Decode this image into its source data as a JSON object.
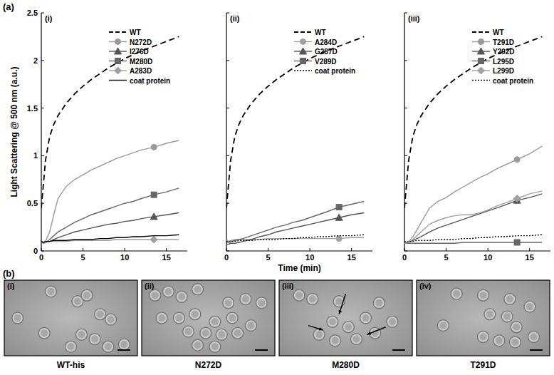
{
  "chart_data": [
    {
      "type": "line",
      "title": "(i)",
      "y_label": "Light Scattering @ 500 nm (a.u.)",
      "x": [
        0,
        0.25,
        0.5,
        1,
        1.5,
        2,
        3,
        4,
        5,
        6,
        7,
        8,
        9,
        10,
        11,
        12,
        13.5,
        15,
        16.5
      ],
      "xlim": [
        0,
        17.5
      ],
      "ylim": [
        0,
        2.5
      ],
      "xticks": [
        0,
        5,
        10,
        15
      ],
      "yticks": [
        0,
        0.5,
        1,
        1.5,
        2,
        2.5
      ],
      "legend": "right",
      "series": [
        {
          "name": "WT",
          "color": "#000000",
          "line_style": "dashed",
          "values": [
            0.45,
            0.7,
            0.95,
            1.2,
            1.33,
            1.42,
            1.55,
            1.65,
            1.73,
            1.8,
            1.86,
            1.92,
            1.97,
            2.02,
            2.06,
            2.1,
            2.15,
            2.2,
            2.25
          ]
        },
        {
          "name": "N272D",
          "color": "#9a9a9a",
          "marker": "circle",
          "line_style": "solid",
          "values": [
            0.1,
            0.08,
            0.1,
            0.2,
            0.38,
            0.55,
            0.68,
            0.75,
            0.8,
            0.85,
            0.89,
            0.93,
            0.97,
            1.0,
            1.03,
            1.06,
            1.09,
            1.13,
            1.16
          ]
        },
        {
          "name": "I276D",
          "color": "#555555",
          "marker": "triangle",
          "line_style": "solid",
          "values": [
            0.1,
            0.08,
            0.09,
            0.1,
            0.12,
            0.14,
            0.17,
            0.2,
            0.22,
            0.24,
            0.26,
            0.28,
            0.29,
            0.31,
            0.32,
            0.34,
            0.36,
            0.38,
            0.4
          ]
        },
        {
          "name": "M280D",
          "color": "#666666",
          "marker": "square",
          "line_style": "solid",
          "values": [
            0.1,
            0.08,
            0.09,
            0.12,
            0.16,
            0.2,
            0.25,
            0.3,
            0.34,
            0.38,
            0.41,
            0.44,
            0.47,
            0.5,
            0.52,
            0.55,
            0.59,
            0.62,
            0.66
          ]
        },
        {
          "name": "A283D",
          "color": "#a0a0a0",
          "marker": "diamond",
          "line_style": "solid",
          "values": [
            0.1,
            0.08,
            0.09,
            0.1,
            0.1,
            0.1,
            0.1,
            0.11,
            0.11,
            0.11,
            0.11,
            0.11,
            0.12,
            0.12,
            0.12,
            0.12,
            0.12,
            0.12,
            0.12
          ]
        },
        {
          "name": "coat protein",
          "color": "#000000",
          "line_style": "solid",
          "values": [
            0.1,
            0.09,
            0.1,
            0.1,
            0.11,
            0.11,
            0.11,
            0.12,
            0.12,
            0.12,
            0.13,
            0.13,
            0.14,
            0.14,
            0.15,
            0.15,
            0.16,
            0.16,
            0.17
          ]
        }
      ]
    },
    {
      "type": "line",
      "title": "(ii)",
      "x_label": "Time (min)",
      "tick_labels": "x",
      "x": [
        0,
        0.25,
        0.5,
        1,
        1.5,
        2,
        3,
        4,
        5,
        6,
        7,
        8,
        9,
        10,
        11,
        12,
        13.5,
        15,
        16.5
      ],
      "xlim": [
        0,
        17.5
      ],
      "ylim": [
        0,
        2.5
      ],
      "xticks": [
        0,
        5,
        10,
        15
      ],
      "yticks": [
        0,
        0.5,
        1,
        1.5,
        2,
        2.5
      ],
      "legend": "right",
      "series": [
        {
          "name": "WT",
          "color": "#000000",
          "line_style": "dashed",
          "values": [
            0.45,
            0.7,
            0.95,
            1.2,
            1.33,
            1.42,
            1.55,
            1.65,
            1.73,
            1.8,
            1.86,
            1.92,
            1.97,
            2.02,
            2.06,
            2.1,
            2.15,
            2.2,
            2.25
          ]
        },
        {
          "name": "A284D",
          "color": "#a0a0a0",
          "marker": "circle",
          "line_style": "solid",
          "values": [
            0.12,
            0.1,
            0.11,
            0.12,
            0.12,
            0.12,
            0.12,
            0.12,
            0.13,
            0.13,
            0.13,
            0.13,
            0.13,
            0.13,
            0.13,
            0.13,
            0.13,
            0.14,
            0.14
          ]
        },
        {
          "name": "G287D",
          "color": "#555555",
          "marker": "triangle",
          "line_style": "solid",
          "values": [
            0.07,
            0.07,
            0.08,
            0.08,
            0.09,
            0.1,
            0.12,
            0.15,
            0.17,
            0.2,
            0.22,
            0.24,
            0.26,
            0.28,
            0.3,
            0.32,
            0.35,
            0.38,
            0.4
          ]
        },
        {
          "name": "V289D",
          "color": "#666666",
          "marker": "square",
          "line_style": "solid",
          "values": [
            0.1,
            0.09,
            0.1,
            0.11,
            0.12,
            0.13,
            0.16,
            0.19,
            0.22,
            0.25,
            0.27,
            0.3,
            0.32,
            0.35,
            0.38,
            0.41,
            0.46,
            0.49,
            0.52
          ]
        },
        {
          "name": "coat protein",
          "color": "#000000",
          "line_style": "dotted",
          "values": [
            0.1,
            0.09,
            0.1,
            0.1,
            0.11,
            0.11,
            0.11,
            0.12,
            0.12,
            0.12,
            0.13,
            0.13,
            0.14,
            0.14,
            0.15,
            0.15,
            0.16,
            0.16,
            0.17
          ]
        }
      ]
    },
    {
      "type": "line",
      "title": "(iii)",
      "tick_labels": "x",
      "x": [
        0,
        0.25,
        0.5,
        1,
        1.5,
        2,
        3,
        4,
        5,
        6,
        7,
        8,
        9,
        10,
        11,
        12,
        13.5,
        15,
        16.5
      ],
      "xlim": [
        0,
        17.5
      ],
      "ylim": [
        0,
        2.5
      ],
      "xticks": [
        0,
        5,
        10,
        15
      ],
      "yticks": [
        0,
        0.5,
        1,
        1.5,
        2,
        2.5
      ],
      "legend": "right",
      "series": [
        {
          "name": "WT",
          "color": "#000000",
          "line_style": "dashed",
          "values": [
            0.45,
            0.7,
            0.95,
            1.2,
            1.33,
            1.42,
            1.55,
            1.65,
            1.73,
            1.8,
            1.86,
            1.92,
            1.97,
            2.02,
            2.06,
            2.1,
            2.15,
            2.2,
            2.25
          ]
        },
        {
          "name": "T291D",
          "color": "#9a9a9a",
          "marker": "circle",
          "line_style": "solid",
          "values": [
            0.1,
            0.09,
            0.1,
            0.15,
            0.22,
            0.3,
            0.45,
            0.52,
            0.56,
            0.62,
            0.67,
            0.72,
            0.77,
            0.81,
            0.86,
            0.9,
            0.96,
            1.02,
            1.1
          ]
        },
        {
          "name": "Y292D",
          "color": "#555555",
          "marker": "triangle",
          "line_style": "solid",
          "values": [
            0.08,
            0.08,
            0.09,
            0.11,
            0.13,
            0.15,
            0.2,
            0.24,
            0.27,
            0.3,
            0.33,
            0.36,
            0.39,
            0.42,
            0.45,
            0.48,
            0.53,
            0.56,
            0.6
          ]
        },
        {
          "name": "L295D",
          "color": "#666666",
          "marker": "square",
          "line_style": "solid",
          "values": [
            0.08,
            0.08,
            0.08,
            0.08,
            0.08,
            0.08,
            0.08,
            0.08,
            0.08,
            0.08,
            0.09,
            0.09,
            0.09,
            0.09,
            0.09,
            0.09,
            0.09,
            0.09,
            0.09
          ]
        },
        {
          "name": "L299D",
          "color": "#a0a0a0",
          "marker": "diamond",
          "line_style": "solid",
          "values": [
            0.08,
            0.08,
            0.09,
            0.12,
            0.16,
            0.2,
            0.28,
            0.32,
            0.35,
            0.37,
            0.38,
            0.38,
            0.4,
            0.43,
            0.47,
            0.5,
            0.55,
            0.6,
            0.63
          ]
        },
        {
          "name": "coat protein",
          "color": "#000000",
          "line_style": "dotted",
          "values": [
            0.1,
            0.09,
            0.1,
            0.1,
            0.11,
            0.11,
            0.11,
            0.12,
            0.12,
            0.12,
            0.13,
            0.13,
            0.14,
            0.14,
            0.15,
            0.15,
            0.16,
            0.16,
            0.17
          ]
        }
      ]
    }
  ],
  "figure": {
    "panel_a_label": "(a)",
    "panel_b_label": "(b)",
    "images": [
      {
        "tag": "(i)",
        "caption": "WT-his"
      },
      {
        "tag": "(ii)",
        "caption": "N272D"
      },
      {
        "tag": "(iii)",
        "caption": "M280D"
      },
      {
        "tag": "(iv)",
        "caption": "T291D"
      }
    ]
  }
}
